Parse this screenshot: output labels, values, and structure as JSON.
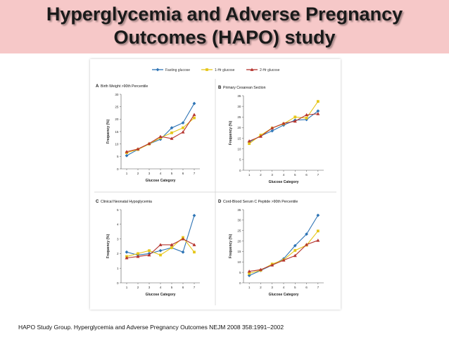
{
  "slide": {
    "title_line1": "Hyperglycemia and Adverse Pregnancy",
    "title_line2": "Outcomes (HAPO) study",
    "citation": "HAPO Study Group. Hyperglycemia and Adverse Pregnancy Outcomes NEJM 2008 358:1991–2002"
  },
  "legend": [
    {
      "label": "Fasting glucose",
      "color": "#2e74b5",
      "marker": "diamond"
    },
    {
      "label": "1-Hr glucose",
      "color": "#e6c619",
      "marker": "square"
    },
    {
      "label": "2-Hr glucose",
      "color": "#b5342e",
      "marker": "triangle"
    }
  ],
  "chart_data": [
    {
      "type": "line",
      "panel_letter": "A",
      "title": "Birth Weight >90th Percentile",
      "xlabel": "Glucose Category",
      "ylabel": "Frequency (%)",
      "x": [
        1,
        2,
        3,
        4,
        5,
        6,
        7
      ],
      "ylim": [
        0,
        30
      ],
      "yticks": [
        0,
        5,
        10,
        15,
        20,
        25,
        30
      ],
      "grid": false,
      "series": [
        {
          "name": "Fasting glucose",
          "values": [
            5.3,
            7.8,
            10.0,
            11.9,
            16.5,
            18.5,
            26.3
          ]
        },
        {
          "name": "1-Hr glucose",
          "values": [
            6.5,
            7.8,
            10.0,
            12.5,
            14.5,
            16.5,
            20.5
          ]
        },
        {
          "name": "2-Hr glucose",
          "values": [
            6.9,
            8.0,
            10.2,
            13.0,
            12.2,
            14.8,
            21.8
          ]
        }
      ]
    },
    {
      "type": "line",
      "panel_letter": "B",
      "title": "Primary Cesarean Section",
      "xlabel": "Glucose Category",
      "ylabel": "Frequency (%)",
      "x": [
        1,
        2,
        3,
        4,
        5,
        6,
        7
      ],
      "ylim": [
        0,
        35
      ],
      "yticks": [
        0,
        5,
        10,
        15,
        20,
        25,
        30,
        35
      ],
      "grid": false,
      "series": [
        {
          "name": "Fasting glucose",
          "values": [
            13.3,
            16.1,
            18.5,
            21.2,
            23.5,
            23.8,
            27.8
          ]
        },
        {
          "name": "1-Hr glucose",
          "values": [
            12.5,
            16.5,
            19.8,
            21.8,
            25.0,
            24.5,
            32.3
          ]
        },
        {
          "name": "2-Hr glucose",
          "values": [
            13.7,
            15.9,
            19.8,
            22.0,
            23.0,
            26.0,
            26.5
          ]
        }
      ]
    },
    {
      "type": "line",
      "panel_letter": "C",
      "title": "Clinical Neonatal Hypoglycemia",
      "xlabel": "Glucose Category",
      "ylabel": "Frequency (%)",
      "x": [
        1,
        2,
        3,
        4,
        5,
        6,
        7
      ],
      "ylim": [
        0,
        5
      ],
      "yticks": [
        0,
        1,
        2,
        3,
        4,
        5
      ],
      "grid": false,
      "series": [
        {
          "name": "Fasting glucose",
          "values": [
            2.1,
            1.9,
            2.0,
            2.2,
            2.4,
            2.1,
            4.6
          ]
        },
        {
          "name": "1-Hr glucose",
          "values": [
            1.8,
            2.0,
            2.2,
            1.9,
            2.4,
            3.1,
            2.1
          ]
        },
        {
          "name": "2-Hr glucose",
          "values": [
            1.7,
            1.8,
            1.9,
            2.6,
            2.6,
            3.0,
            2.6
          ]
        }
      ]
    },
    {
      "type": "line",
      "panel_letter": "D",
      "title": "Cord-Blood Serum C Peptide >90th Percentile",
      "xlabel": "Glucose Category",
      "ylabel": "Frequency (%)",
      "x": [
        1,
        2,
        3,
        4,
        5,
        6,
        7
      ],
      "ylim": [
        0,
        35
      ],
      "yticks": [
        0,
        5,
        10,
        15,
        20,
        25,
        30,
        35
      ],
      "grid": false,
      "series": [
        {
          "name": "Fasting glucose",
          "values": [
            3.5,
            5.9,
            8.5,
            11.5,
            17.8,
            23.3,
            32.3
          ]
        },
        {
          "name": "1-Hr glucose",
          "values": [
            4.5,
            6.0,
            9.0,
            11.0,
            15.5,
            18.0,
            24.8
          ]
        },
        {
          "name": "2-Hr glucose",
          "values": [
            5.5,
            6.3,
            8.5,
            10.8,
            13.0,
            18.3,
            20.3
          ]
        }
      ]
    }
  ]
}
